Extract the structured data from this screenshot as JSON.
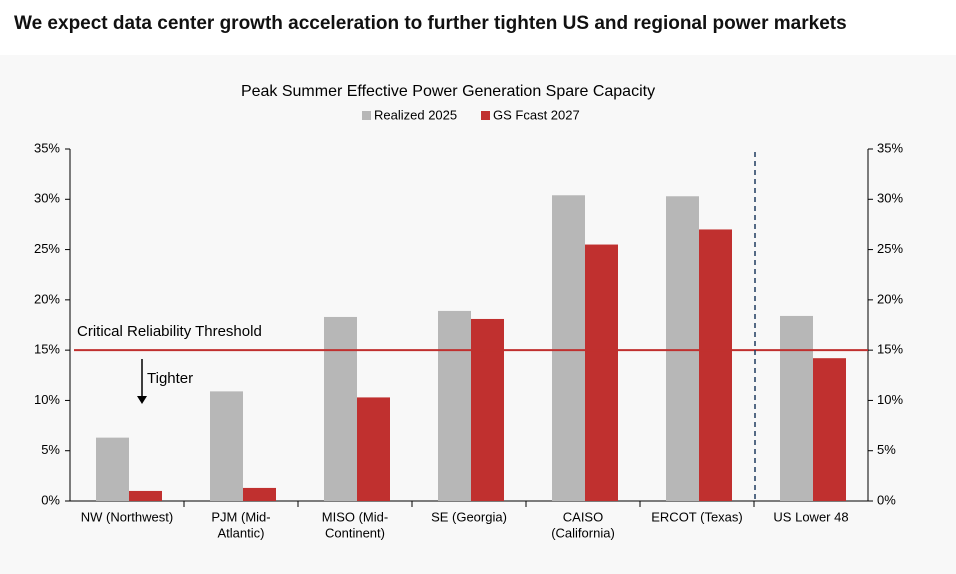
{
  "header": "We expect data center growth acceleration to further tighten US and regional power markets",
  "chart_data": {
    "type": "bar",
    "title": "Peak Summer Effective Power Generation Spare Capacity",
    "categories": [
      [
        "NW (Northwest)"
      ],
      [
        "PJM (Mid-",
        "Atlantic)"
      ],
      [
        "MISO (Mid-",
        "Continent)"
      ],
      [
        "SE (Georgia)"
      ],
      [
        "CAISO",
        "(California)"
      ],
      [
        "ERCOT (Texas)"
      ],
      [
        "US Lower 48"
      ]
    ],
    "series": [
      {
        "name": "Realized 2025",
        "color": "#b7b7b7",
        "values": [
          6.3,
          10.9,
          18.3,
          18.9,
          30.4,
          30.3,
          18.4
        ]
      },
      {
        "name": "GS Fcast 2027",
        "color": "#c0302f",
        "values": [
          1.0,
          1.3,
          10.3,
          18.1,
          25.5,
          27.0,
          14.2
        ]
      }
    ],
    "ylim": [
      0,
      35
    ],
    "yticks": [
      {
        "value": 0,
        "label": "0%"
      },
      {
        "value": 5,
        "label": "5%"
      },
      {
        "value": 10,
        "label": "10%"
      },
      {
        "value": 15,
        "label": "15%"
      },
      {
        "value": 20,
        "label": "20%"
      },
      {
        "value": 25,
        "label": "25%"
      },
      {
        "value": 30,
        "label": "30%"
      },
      {
        "value": 35,
        "label": "35%"
      }
    ],
    "y2lim": [
      0,
      35
    ],
    "y2ticks": [
      {
        "value": 0,
        "label": "0%"
      },
      {
        "value": 5,
        "label": "5%"
      },
      {
        "value": 10,
        "label": "10%"
      },
      {
        "value": 15,
        "label": "15%"
      },
      {
        "value": 20,
        "label": "20%"
      },
      {
        "value": 25,
        "label": "25%"
      },
      {
        "value": 30,
        "label": "30%"
      },
      {
        "value": 35,
        "label": "35%"
      }
    ],
    "threshold": 15,
    "threshold_label": "Critical Reliability Threshold",
    "arrow_label": "Tighter"
  }
}
